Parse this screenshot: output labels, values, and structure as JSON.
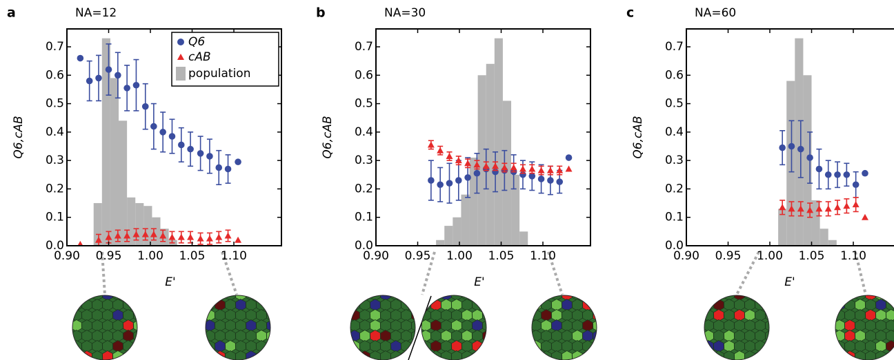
{
  "chart_data": [
    {
      "type": "errorbar",
      "panel": "a",
      "title": "NA=12",
      "xlabel": "E'",
      "ylabel": "Q6,cAB",
      "xlim": [
        0.9,
        1.157
      ],
      "ylim": [
        0,
        0.763
      ],
      "xticks": [
        {
          "value": 0.9,
          "label": "0.90"
        },
        0.95,
        {
          "value": 1.0,
          "label": "1.00"
        },
        1.05,
        {
          "value": 1.1,
          "label": "1.10"
        }
      ],
      "yticks": [
        {
          "value": 0,
          "label": "0.0"
        },
        0.1,
        0.2,
        0.3,
        0.4,
        0.5,
        0.6,
        0.7
      ],
      "legend": "upper right",
      "histogram": {
        "name": "population",
        "color": "#b5b5b5",
        "bins": [
          0.932,
          0.942,
          0.952,
          0.962,
          0.972,
          0.982,
          0.992,
          1.002,
          1.012,
          1.022,
          1.032
        ],
        "counts": [
          0.15,
          0.73,
          0.59,
          0.44,
          0.17,
          0.15,
          0.14,
          0.1,
          0.06,
          0.02
        ]
      },
      "series": [
        {
          "name": "Q6",
          "color": "#3a4d9f",
          "marker": "circle",
          "x": [
            0.916,
            0.927,
            0.938,
            0.95,
            0.961,
            0.972,
            0.983,
            0.994,
            1.004,
            1.015,
            1.026,
            1.037,
            1.048,
            1.06,
            1.071,
            1.082,
            1.093,
            1.105
          ],
          "values": [
            0.66,
            0.58,
            0.59,
            0.62,
            0.6,
            0.555,
            0.565,
            0.49,
            0.42,
            0.4,
            0.385,
            0.355,
            0.34,
            0.325,
            0.315,
            0.275,
            0.27,
            0.295
          ],
          "errors": [
            null,
            0.07,
            0.08,
            0.09,
            0.08,
            0.08,
            0.09,
            0.08,
            0.08,
            0.07,
            0.06,
            0.06,
            0.06,
            0.06,
            0.06,
            0.06,
            0.05,
            null
          ]
        },
        {
          "name": "cAB",
          "color": "#e52b2b",
          "marker": "triangle",
          "x": [
            0.916,
            0.927,
            0.938,
            0.95,
            0.961,
            0.972,
            0.983,
            0.994,
            1.004,
            1.015,
            1.026,
            1.037,
            1.048,
            1.06,
            1.071,
            1.082,
            1.093,
            1.105
          ],
          "values": [
            0.005,
            null,
            0.02,
            0.03,
            0.035,
            0.035,
            0.04,
            0.04,
            0.04,
            0.035,
            0.03,
            0.03,
            0.03,
            0.025,
            0.025,
            0.03,
            0.035,
            0.02
          ],
          "errors": [
            null,
            null,
            0.02,
            0.02,
            0.02,
            0.02,
            0.02,
            0.02,
            0.02,
            0.02,
            0.02,
            0.02,
            0.02,
            0.02,
            0.02,
            0.02,
            0.02,
            null
          ]
        }
      ]
    },
    {
      "type": "errorbar",
      "panel": "b",
      "title": "NA=30",
      "xlabel": "E'",
      "ylabel": "Q6,cAB",
      "xlim": [
        0.9,
        1.157
      ],
      "ylim": [
        0,
        0.763
      ],
      "xticks": [
        {
          "value": 0.9,
          "label": "0.90"
        },
        0.95,
        {
          "value": 1.0,
          "label": "1.00"
        },
        1.05,
        {
          "value": 1.1,
          "label": "1.10"
        }
      ],
      "yticks": [
        {
          "value": 0,
          "label": "0.0"
        },
        0.1,
        0.2,
        0.3,
        0.4,
        0.5,
        0.6,
        0.7
      ],
      "histogram": {
        "color": "#b5b5b5",
        "bins": [
          0.972,
          0.982,
          0.992,
          1.002,
          1.012,
          1.022,
          1.032,
          1.042,
          1.052,
          1.062,
          1.072,
          1.082
        ],
        "counts": [
          0.02,
          0.07,
          0.1,
          0.18,
          0.31,
          0.6,
          0.64,
          0.73,
          0.51,
          0.25,
          0.05
        ]
      },
      "series": [
        {
          "color": "#3a4d9f",
          "marker": "circle",
          "x": [
            0.966,
            0.977,
            0.988,
            0.999,
            1.01,
            1.021,
            1.032,
            1.043,
            1.054,
            1.065,
            1.076,
            1.087,
            1.098,
            1.109,
            1.12,
            1.131
          ],
          "values": [
            0.23,
            0.215,
            0.22,
            0.23,
            0.24,
            0.255,
            0.27,
            0.26,
            0.265,
            0.26,
            0.25,
            0.245,
            0.235,
            0.23,
            0.225,
            0.31
          ],
          "errors": [
            0.07,
            0.06,
            0.07,
            0.07,
            0.07,
            0.07,
            0.07,
            0.07,
            0.07,
            0.06,
            0.05,
            0.05,
            0.05,
            0.05,
            0.04,
            null
          ]
        },
        {
          "color": "#e52b2b",
          "marker": "triangle",
          "x": [
            0.966,
            0.977,
            0.988,
            0.999,
            1.01,
            1.021,
            1.032,
            1.043,
            1.054,
            1.065,
            1.076,
            1.087,
            1.098,
            1.109,
            1.12,
            1.131
          ],
          "values": [
            0.355,
            0.335,
            0.315,
            0.3,
            0.29,
            0.285,
            0.28,
            0.28,
            0.275,
            0.275,
            0.27,
            0.27,
            0.265,
            0.265,
            0.265,
            0.27
          ],
          "errors": [
            0.015,
            0.015,
            0.015,
            0.015,
            0.015,
            0.015,
            0.015,
            0.015,
            0.015,
            0.015,
            0.015,
            0.015,
            0.015,
            0.015,
            0.015,
            null
          ]
        }
      ]
    },
    {
      "type": "errorbar",
      "panel": "c",
      "title": "NA=60",
      "xlabel": "E'",
      "ylabel": "Q6,cAB",
      "xlim": [
        0.9,
        1.157
      ],
      "ylim": [
        0,
        0.763
      ],
      "xticks": [
        {
          "value": 0.9,
          "label": "0.90"
        },
        0.95,
        {
          "value": 1.0,
          "label": "1.00"
        },
        1.05,
        {
          "value": 1.1,
          "label": "1.10"
        }
      ],
      "yticks": [
        {
          "value": 0,
          "label": "0.0"
        },
        0.1,
        0.2,
        0.3,
        0.4,
        0.5,
        0.6,
        0.7
      ],
      "histogram": {
        "color": "#b5b5b5",
        "bins": [
          1.01,
          1.02,
          1.03,
          1.04,
          1.05,
          1.06,
          1.07,
          1.08
        ],
        "counts": [
          0.13,
          0.58,
          0.73,
          0.6,
          0.16,
          0.06,
          0.02
        ]
      },
      "series": [
        {
          "color": "#3a4d9f",
          "marker": "circle",
          "x": [
            1.015,
            1.026,
            1.037,
            1.048,
            1.059,
            1.07,
            1.081,
            1.092,
            1.103,
            1.114
          ],
          "values": [
            0.345,
            0.35,
            0.34,
            0.31,
            0.27,
            0.25,
            0.25,
            0.25,
            0.215,
            0.255
          ],
          "errors": [
            0.06,
            0.09,
            0.1,
            0.09,
            0.07,
            0.05,
            0.045,
            0.04,
            0.045,
            null
          ]
        },
        {
          "color": "#e52b2b",
          "marker": "triangle",
          "x": [
            1.015,
            1.026,
            1.037,
            1.048,
            1.059,
            1.07,
            1.081,
            1.092,
            1.103,
            1.114
          ],
          "values": [
            0.135,
            0.13,
            0.13,
            0.125,
            0.13,
            0.13,
            0.135,
            0.14,
            0.145,
            0.1
          ],
          "errors": [
            0.025,
            0.025,
            0.025,
            0.025,
            0.025,
            0.025,
            0.025,
            0.025,
            0.025,
            null
          ]
        }
      ]
    }
  ]
}
